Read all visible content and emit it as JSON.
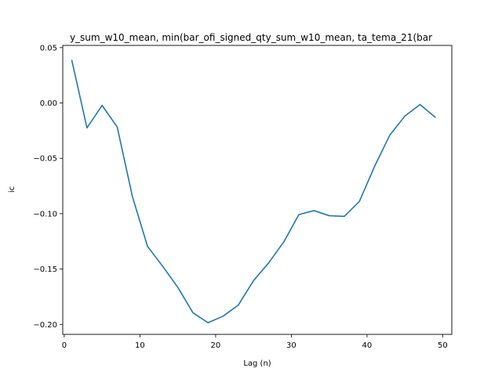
{
  "chart_data": {
    "type": "line",
    "title": "y_sum_w10_mean, min(bar_ofi_signed_qty_sum_w10_mean, ta_tema_21(bar",
    "xlabel": "Lag (n)",
    "ylabel": "ic",
    "xlim": [
      -0.2,
      51.2
    ],
    "ylim": [
      -0.209,
      0.052
    ],
    "x_ticks": [
      0,
      10,
      20,
      30,
      40,
      50
    ],
    "x_tick_labels": [
      "0",
      "10",
      "20",
      "30",
      "40",
      "50"
    ],
    "y_ticks": [
      0.05,
      0.0,
      -0.05,
      -0.1,
      -0.15,
      -0.2
    ],
    "y_tick_labels": [
      "0.05",
      "0.00",
      "−0.05",
      "−0.10",
      "−0.15",
      "−0.20"
    ],
    "grid": false,
    "line_color": "#1f77b4",
    "series": [
      {
        "x": [
          1,
          3,
          5,
          7,
          9,
          11,
          13,
          15,
          17,
          19,
          21,
          23,
          25,
          27,
          29,
          31,
          33,
          35,
          37,
          39,
          41,
          43,
          45,
          47,
          49
        ],
        "values": [
          0.0385,
          -0.0225,
          -0.0022,
          -0.0218,
          -0.0845,
          -0.1295,
          -0.1475,
          -0.1665,
          -0.1895,
          -0.1985,
          -0.1925,
          -0.1825,
          -0.1605,
          -0.1445,
          -0.1255,
          -0.1008,
          -0.0972,
          -0.1018,
          -0.1024,
          -0.0888,
          -0.0572,
          -0.0292,
          -0.0118,
          -0.0014,
          -0.0128
        ]
      }
    ]
  }
}
